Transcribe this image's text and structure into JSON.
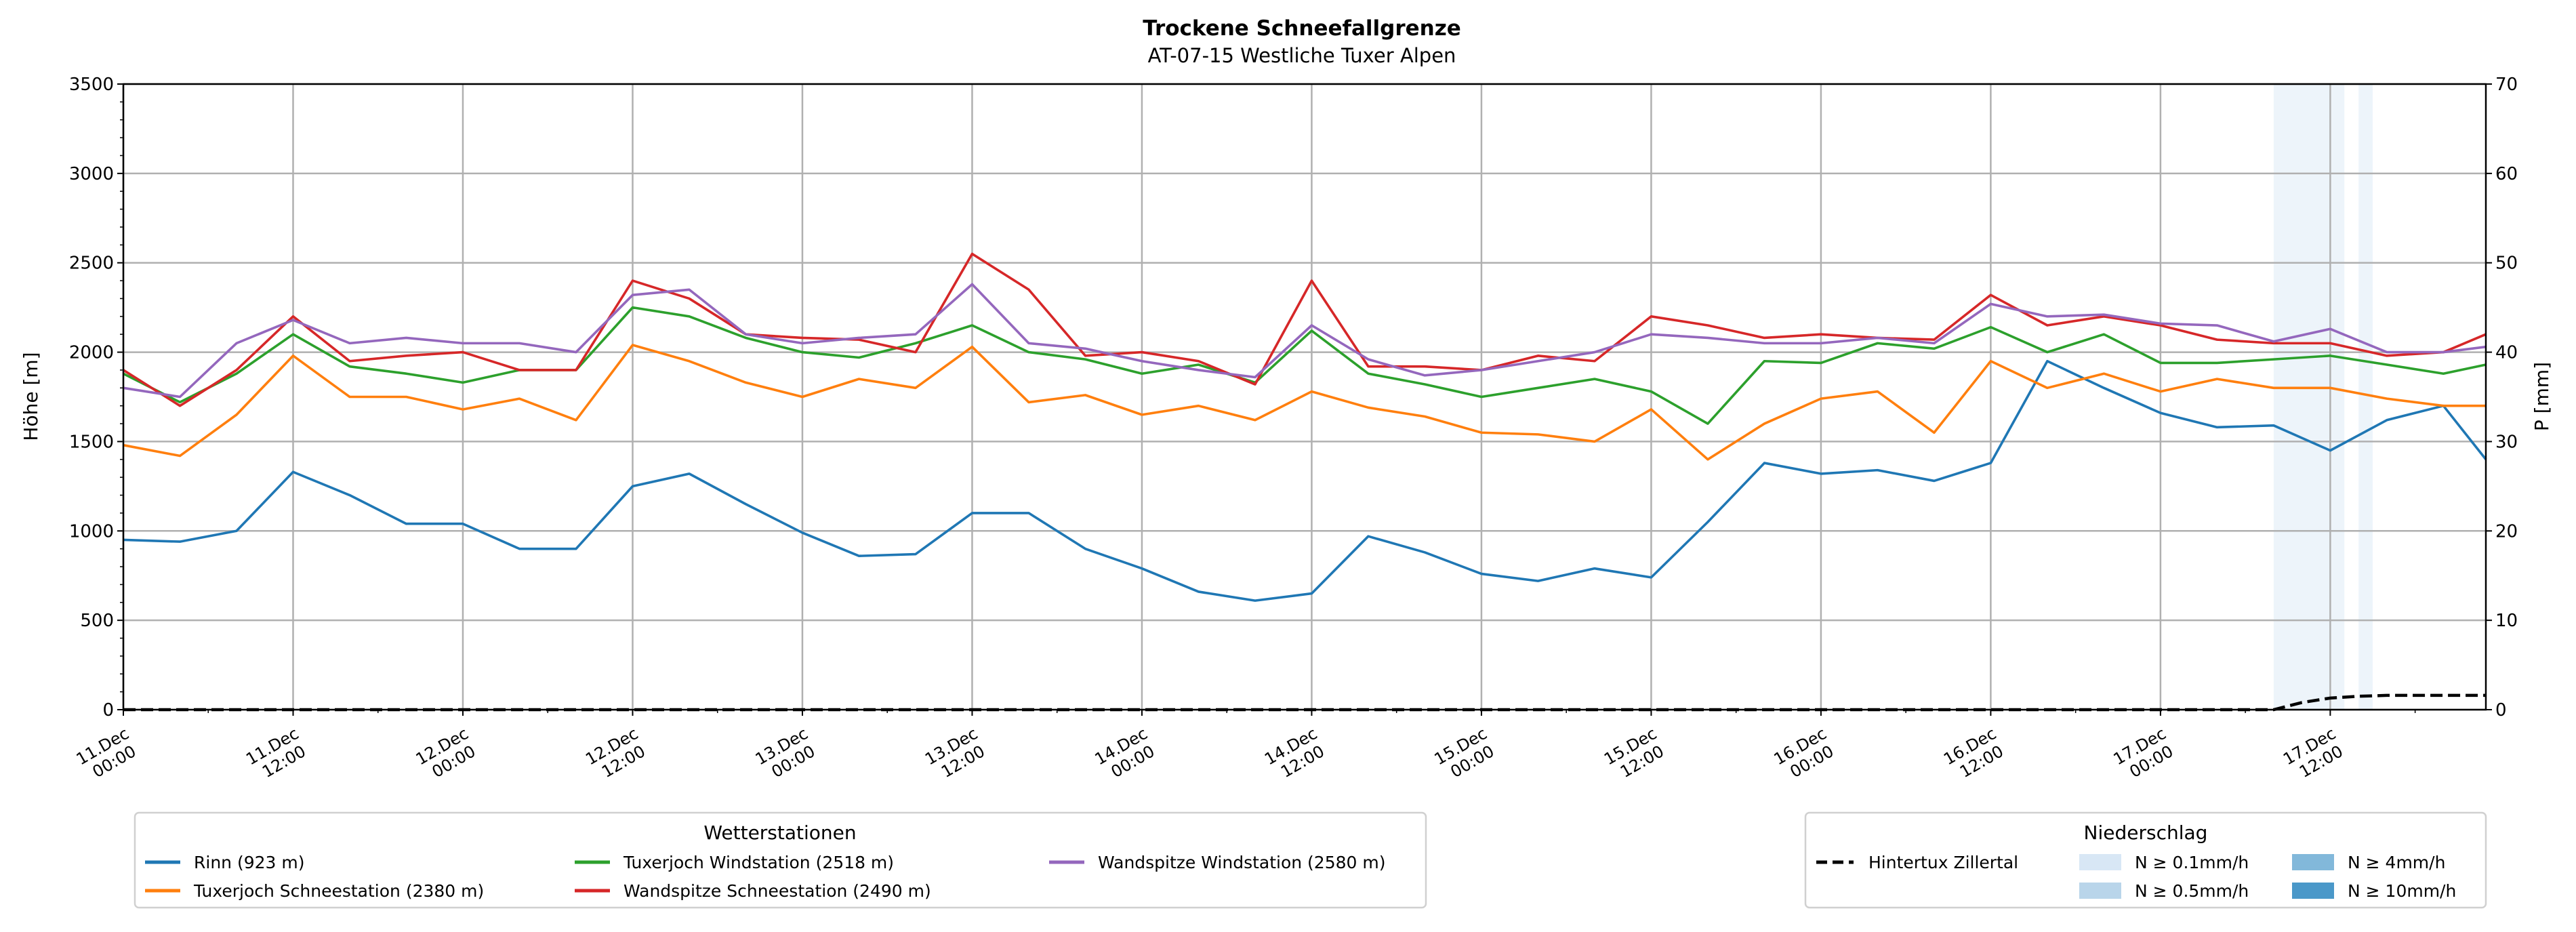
{
  "chart_data": {
    "type": "line",
    "title": "Trockene Schneefallgrenze",
    "subtitle": "AT-07-15 Westliche Tuxer Alpen",
    "ylabel": "Höhe [m]",
    "y2label": "P [mm]",
    "ylim": [
      0,
      3500
    ],
    "y2lim": [
      0,
      70
    ],
    "yticks": [
      "0",
      "500",
      "1000",
      "1500",
      "2000",
      "2500",
      "3000",
      "3500"
    ],
    "y2ticks": [
      "0",
      "10",
      "20",
      "30",
      "40",
      "50",
      "60",
      "70"
    ],
    "xlim_hours": [
      0,
      167
    ],
    "xticks": [
      [
        "11.Dec",
        "00:00"
      ],
      [
        "11.Dec",
        "12:00"
      ],
      [
        "12.Dec",
        "00:00"
      ],
      [
        "12.Dec",
        "12:00"
      ],
      [
        "13.Dec",
        "00:00"
      ],
      [
        "13.Dec",
        "12:00"
      ],
      [
        "14.Dec",
        "00:00"
      ],
      [
        "14.Dec",
        "12:00"
      ],
      [
        "15.Dec",
        "00:00"
      ],
      [
        "15.Dec",
        "12:00"
      ],
      [
        "16.Dec",
        "00:00"
      ],
      [
        "16.Dec",
        "12:00"
      ],
      [
        "17.Dec",
        "00:00"
      ],
      [
        "17.Dec",
        "12:00"
      ]
    ],
    "grid": true,
    "x_hours": [
      0,
      4,
      8,
      12,
      16,
      20,
      24,
      28,
      32,
      36,
      40,
      44,
      48,
      52,
      56,
      60,
      64,
      68,
      72,
      76,
      80,
      84,
      88,
      92,
      96,
      100,
      104,
      108,
      112,
      116,
      120,
      124,
      128,
      132,
      136,
      140,
      144,
      148,
      152,
      156,
      160,
      164,
      167
    ],
    "series": [
      {
        "name": "Rinn (923 m)",
        "color": "#1f77b4",
        "values": [
          950,
          940,
          1000,
          1330,
          1200,
          1040,
          1040,
          900,
          900,
          1250,
          1320,
          1150,
          990,
          860,
          870,
          1100,
          1100,
          900,
          790,
          660,
          610,
          650,
          970,
          880,
          760,
          720,
          790,
          740,
          1050,
          1380,
          1320,
          1340,
          1280,
          1380,
          1950,
          1800,
          1660,
          1580,
          1590,
          1450,
          1620,
          1700,
          1400
        ]
      },
      {
        "name": "Tuxerjoch Schneestation (2380 m)",
        "color": "#ff7f0e",
        "values": [
          1480,
          1420,
          1650,
          1980,
          1750,
          1750,
          1680,
          1740,
          1620,
          2040,
          1950,
          1830,
          1750,
          1850,
          1800,
          2030,
          1720,
          1760,
          1650,
          1700,
          1620,
          1780,
          1690,
          1640,
          1550,
          1540,
          1500,
          1680,
          1400,
          1600,
          1740,
          1780,
          1550,
          1950,
          1800,
          1880,
          1780,
          1850,
          1800,
          1800,
          1740,
          1700,
          1700
        ]
      },
      {
        "name": "Tuxerjoch Windstation (2518 m)",
        "color": "#2ca02c",
        "values": [
          1880,
          1720,
          1880,
          2100,
          1920,
          1880,
          1830,
          1900,
          1900,
          2250,
          2200,
          2080,
          2000,
          1970,
          2050,
          2150,
          2000,
          1960,
          1880,
          1930,
          1830,
          2120,
          1880,
          1820,
          1750,
          1800,
          1850,
          1780,
          1600,
          1950,
          1940,
          2050,
          2020,
          2140,
          2000,
          2100,
          1940,
          1940,
          1960,
          1980,
          1930,
          1880,
          1930
        ]
      },
      {
        "name": "Wandspitze Schneestation (2490 m)",
        "color": "#d62728",
        "values": [
          1900,
          1700,
          1900,
          2200,
          1950,
          1980,
          2000,
          1900,
          1900,
          2400,
          2300,
          2100,
          2080,
          2070,
          2000,
          2550,
          2350,
          1980,
          2000,
          1950,
          1820,
          2400,
          1920,
          1920,
          1900,
          1980,
          1950,
          2200,
          2150,
          2080,
          2100,
          2080,
          2070,
          2320,
          2150,
          2200,
          2150,
          2070,
          2050,
          2050,
          1980,
          2000,
          2100
        ]
      },
      {
        "name": "Wandspitze Windstation (2580 m)",
        "color": "#9467bd",
        "values": [
          1800,
          1750,
          2050,
          2180,
          2050,
          2080,
          2050,
          2050,
          2000,
          2320,
          2350,
          2100,
          2050,
          2080,
          2100,
          2380,
          2050,
          2020,
          1950,
          1900,
          1860,
          2150,
          1960,
          1870,
          1900,
          1950,
          2000,
          2100,
          2080,
          2050,
          2050,
          2080,
          2050,
          2270,
          2200,
          2210,
          2160,
          2150,
          2060,
          2130,
          2000,
          2000,
          2030
        ]
      }
    ],
    "precip_line": {
      "name": "Hintertux Zillertal",
      "color": "#000000",
      "x_hours": [
        0,
        152,
        154,
        156,
        158,
        160,
        167
      ],
      "values": [
        0,
        0,
        0.8,
        1.3,
        1.5,
        1.6,
        1.6
      ]
    },
    "precip_spans": [
      {
        "from_hour": 152,
        "to_hour": 157,
        "class": "N ≥ 0.1mm/h"
      },
      {
        "from_hour": 158,
        "to_hour": 159,
        "class": "N ≥ 0.1mm/h"
      }
    ],
    "legend_stations": {
      "title": "Wetterstationen",
      "placement": "bottom-left"
    },
    "legend_precip": {
      "title": "Niederschlag",
      "placement": "bottom-right",
      "classes": [
        {
          "label": "N ≥ 0.1mm/h",
          "color": "#d8e7f5"
        },
        {
          "label": "N ≥ 0.5mm/h",
          "color": "#b9d5ea"
        },
        {
          "label": "N ≥ 4mm/h",
          "color": "#82b8da"
        },
        {
          "label": "N ≥ 10mm/h",
          "color": "#4a98c9"
        }
      ]
    }
  }
}
